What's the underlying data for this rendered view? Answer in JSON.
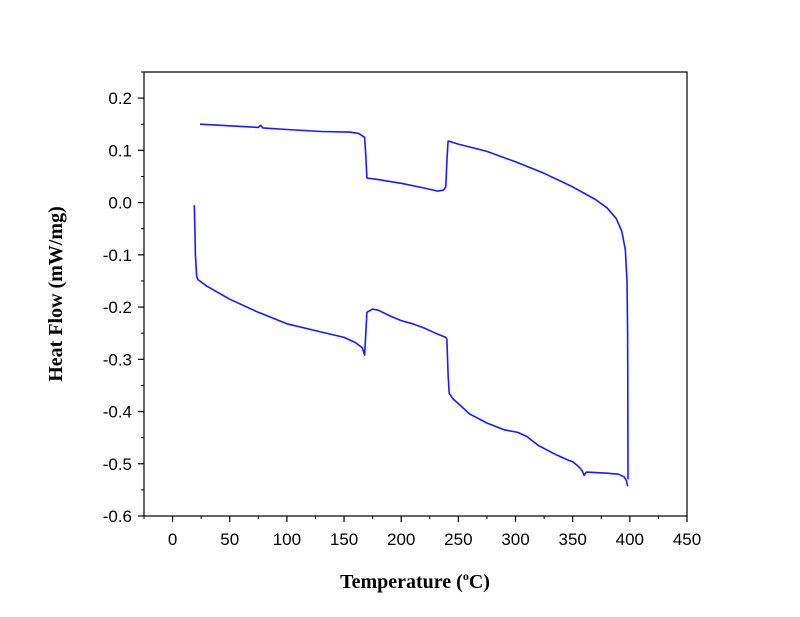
{
  "chart_data": {
    "type": "line",
    "xlabel": "Temperature (",
    "xlabel_sup": "o",
    "xlabel_end": "C)",
    "ylabel": "Heat Flow (mW/mg)",
    "xlim": [
      -25,
      450
    ],
    "ylim": [
      -0.6,
      0.25
    ],
    "x_ticks": [
      0,
      50,
      100,
      150,
      200,
      250,
      300,
      350,
      400,
      450
    ],
    "x_tick_labels": [
      "0",
      "50",
      "100",
      "150",
      "200",
      "250",
      "300",
      "350",
      "400",
      "450"
    ],
    "y_ticks": [
      -0.6,
      -0.5,
      -0.4,
      -0.3,
      -0.2,
      -0.1,
      0.0,
      0.1,
      0.2
    ],
    "y_tick_labels": [
      "-0.6",
      "-0.5",
      "-0.4",
      "-0.3",
      "-0.2",
      "-0.1",
      "0.0",
      "0.1",
      "0.2"
    ],
    "grid": false,
    "line_color": "#1a1aff",
    "series": [
      {
        "points": [
          [
            24,
            0.15
          ],
          [
            50,
            0.147
          ],
          [
            75,
            0.144
          ],
          [
            77,
            0.148
          ],
          [
            79,
            0.143
          ],
          [
            100,
            0.14
          ],
          [
            130,
            0.136
          ],
          [
            155,
            0.135
          ],
          [
            163,
            0.132
          ],
          [
            168,
            0.125
          ],
          [
            169,
            0.09
          ],
          [
            170,
            0.047
          ],
          [
            180,
            0.044
          ],
          [
            200,
            0.037
          ],
          [
            220,
            0.028
          ],
          [
            232,
            0.022
          ],
          [
            237,
            0.024
          ],
          [
            239,
            0.03
          ],
          [
            240,
            0.08
          ],
          [
            241,
            0.118
          ],
          [
            250,
            0.112
          ],
          [
            275,
            0.098
          ],
          [
            300,
            0.078
          ],
          [
            325,
            0.056
          ],
          [
            350,
            0.03
          ],
          [
            370,
            0.006
          ],
          [
            380,
            -0.01
          ],
          [
            388,
            -0.03
          ],
          [
            393,
            -0.055
          ],
          [
            396,
            -0.09
          ],
          [
            397.5,
            -0.15
          ],
          [
            398,
            -0.25
          ],
          [
            398.2,
            -0.35
          ],
          [
            398.3,
            -0.45
          ],
          [
            398.4,
            -0.53
          ]
        ]
      },
      {
        "points": [
          [
            19,
            -0.005
          ],
          [
            19.5,
            -0.05
          ],
          [
            20,
            -0.1
          ],
          [
            21,
            -0.14
          ],
          [
            22,
            -0.147
          ],
          [
            30,
            -0.16
          ],
          [
            50,
            -0.185
          ],
          [
            75,
            -0.21
          ],
          [
            100,
            -0.232
          ],
          [
            125,
            -0.245
          ],
          [
            150,
            -0.258
          ],
          [
            160,
            -0.268
          ],
          [
            166,
            -0.278
          ],
          [
            168,
            -0.292
          ],
          [
            169,
            -0.25
          ],
          [
            170,
            -0.21
          ],
          [
            175,
            -0.204
          ],
          [
            180,
            -0.206
          ],
          [
            190,
            -0.217
          ],
          [
            200,
            -0.226
          ],
          [
            210,
            -0.232
          ],
          [
            220,
            -0.24
          ],
          [
            230,
            -0.25
          ],
          [
            239,
            -0.258
          ],
          [
            240,
            -0.262
          ],
          [
            241,
            -0.33
          ],
          [
            242,
            -0.365
          ],
          [
            245,
            -0.375
          ],
          [
            260,
            -0.405
          ],
          [
            275,
            -0.422
          ],
          [
            290,
            -0.435
          ],
          [
            302,
            -0.44
          ],
          [
            310,
            -0.448
          ],
          [
            320,
            -0.465
          ],
          [
            335,
            -0.482
          ],
          [
            345,
            -0.492
          ],
          [
            350,
            -0.496
          ],
          [
            355,
            -0.505
          ],
          [
            358,
            -0.512
          ],
          [
            360,
            -0.522
          ],
          [
            362,
            -0.516
          ],
          [
            370,
            -0.517
          ],
          [
            380,
            -0.518
          ],
          [
            390,
            -0.52
          ],
          [
            395,
            -0.525
          ],
          [
            397,
            -0.532
          ],
          [
            398,
            -0.543
          ]
        ]
      }
    ]
  }
}
